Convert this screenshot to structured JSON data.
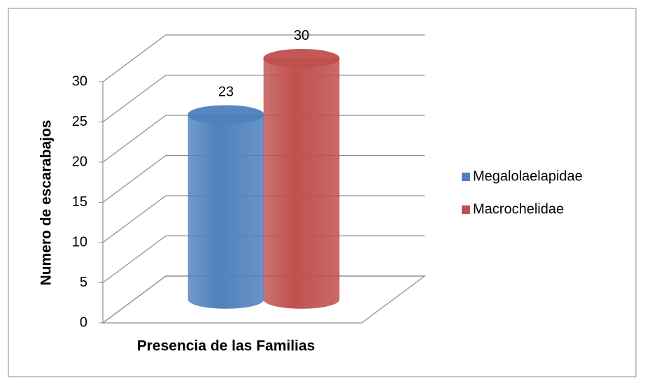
{
  "chart_data": {
    "type": "bar3d",
    "xlabel": "Presencia de las Familias",
    "ylabel": "Numero de escarabajos",
    "categories": [
      null
    ],
    "series": [
      {
        "name": "Megalolaelapidae",
        "color": "#4f81bd",
        "values": [
          23
        ]
      },
      {
        "name": "Macrochelidae",
        "color": "#c0504d",
        "values": [
          30
        ]
      }
    ],
    "ylim": [
      0,
      30
    ],
    "yticks": [
      0,
      5,
      10,
      15,
      20,
      25,
      30
    ],
    "grid": true,
    "legend": "right"
  }
}
